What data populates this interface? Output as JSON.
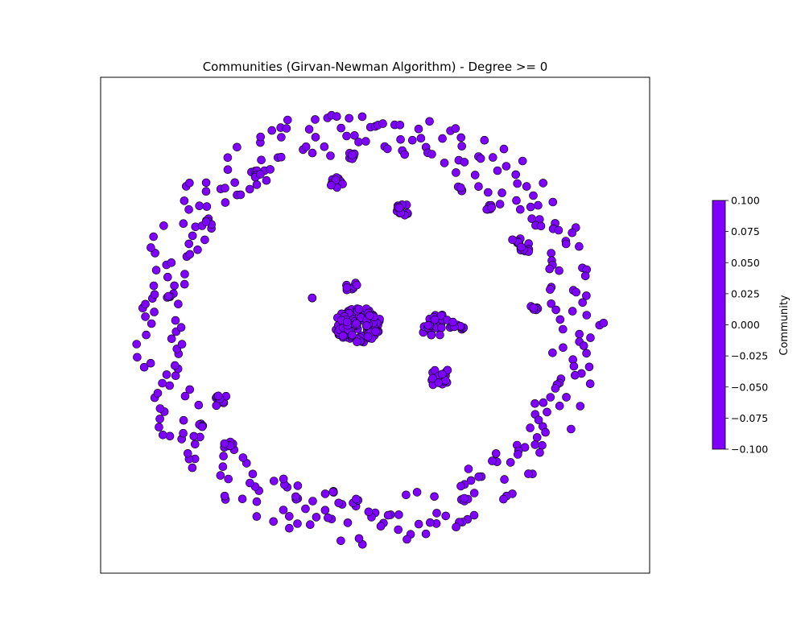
{
  "chart_data": {
    "type": "scatter",
    "title": "Communities (Girvan-Newman Algorithm) - Degree >= 0",
    "xlabel": "",
    "ylabel": "",
    "grid": false,
    "axes_ticks_visible": false,
    "node_color": "#8000ff",
    "node_edge_color": "#000000",
    "layout_description_note": "",
    "series": [
      {
        "name": "",
        "x": [],
        "y": []
      }
    ],
    "colorbar": {
      "label": "Community",
      "range": [
        -0.1,
        0.1
      ],
      "tick_labels": [
        "0.100",
        "0.075",
        "0.050",
        "0.025",
        "0.000",
        "−0.025",
        "−0.050",
        "−0.075",
        "−0.100"
      ],
      "color": "#8000ff",
      "placement": "right"
    }
  }
}
